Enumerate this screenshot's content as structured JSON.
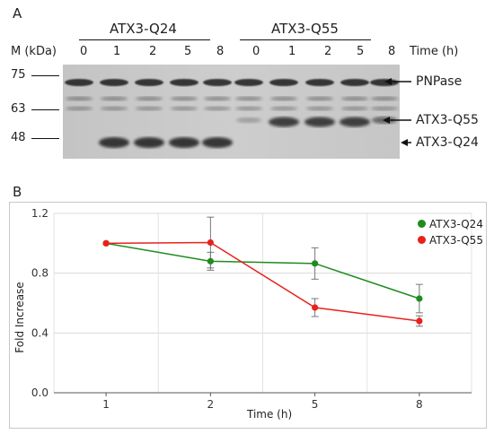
{
  "panel_a": {
    "letter": "A",
    "mw_header": "M (kDa)",
    "time_header": "Time (h)",
    "groups": [
      {
        "label": "ATX3-Q24",
        "lanes": [
          "0",
          "1",
          "2",
          "5",
          "8"
        ]
      },
      {
        "label": "ATX3-Q55",
        "lanes": [
          "0",
          "1",
          "2",
          "5",
          "8"
        ]
      }
    ],
    "markers": [
      "75",
      "63",
      "48"
    ],
    "band_labels": [
      "PNPase",
      "ATX3-Q55",
      "ATX3-Q24"
    ],
    "colors": {
      "band": "#1f1f1f",
      "background": "#c9c9c9"
    }
  },
  "panel_b": {
    "letter": "B"
  },
  "chart_data": {
    "type": "line",
    "title": "",
    "xlabel": "Time (h)",
    "ylabel": "Fold Increase",
    "categories": [
      "1",
      "2",
      "5",
      "8"
    ],
    "ylim": [
      0.0,
      1.2
    ],
    "yticks": [
      "0.0",
      "0.4",
      "0.8",
      "1.2"
    ],
    "grid": true,
    "legend_position": "top-right",
    "series": [
      {
        "name": "ATX3-Q24",
        "color": "#1e8c1e",
        "values": [
          1.0,
          0.88,
          0.865,
          0.63
        ],
        "errors": [
          0.0,
          0.06,
          0.105,
          0.095
        ]
      },
      {
        "name": "ATX3-Q55",
        "color": "#e8211c",
        "values": [
          1.0,
          1.005,
          0.57,
          0.48
        ],
        "errors": [
          0.0,
          0.17,
          0.06,
          0.035
        ]
      }
    ]
  }
}
